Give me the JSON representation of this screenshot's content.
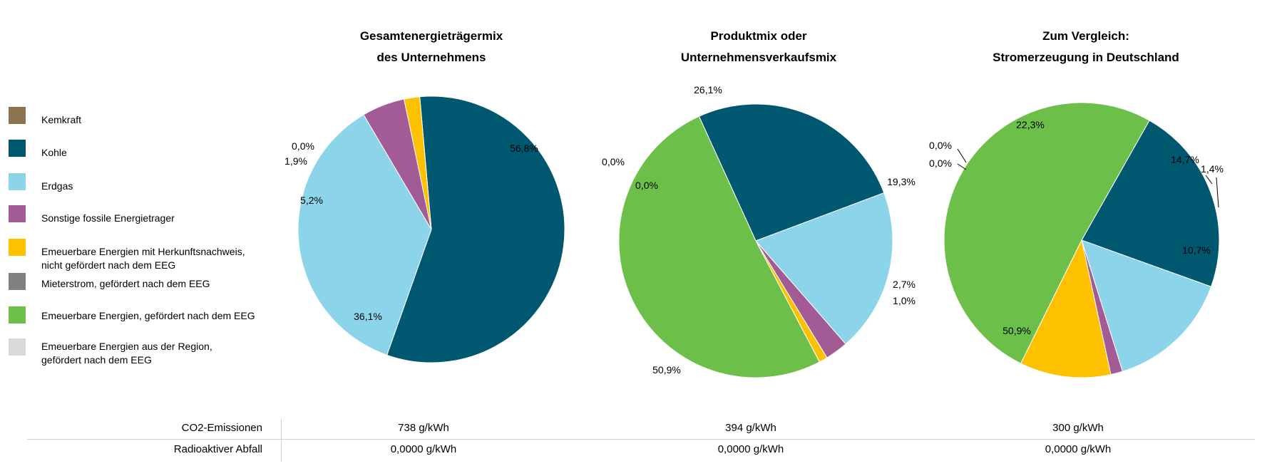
{
  "legend": [
    {
      "label": "Kemkraft",
      "color": "#8b7350"
    },
    {
      "label": "Kohle",
      "color": "#005870"
    },
    {
      "label": "Erdgas",
      "color": "#8cd4ea"
    },
    {
      "label": "Sonstige fossile Energietrager",
      "color": "#a35b95"
    },
    {
      "label": "Emeuerbare Energien mit Herkunftsnachweis,\nnicht gefördert nach dem EEG",
      "color": "#fdc100"
    },
    {
      "label": "Mieterstrom, gefördert nach dem EEG",
      "color": "#808080"
    },
    {
      "label": "Emeuerbare Energien, gefördert nach dem EEG",
      "color": "#6cc04a"
    },
    {
      "label": "Emeuerbare Energien aus der Region,\ngefördert nach dem EEG",
      "color": "#d9d9d9"
    }
  ],
  "chart_data": [
    {
      "type": "pie",
      "title": "Gesamtenergieträgermix\ndes Unternehmens",
      "labels": [
        "Kohle",
        "Erdgas",
        "Sonstige fossile Energietrager",
        "Emeuerbare Energien mit Herkunftsnachweis, nicht gefördert nach dem EEG",
        "Kemkraft"
      ],
      "values": [
        56.8,
        36.1,
        5.2,
        1.9,
        0.0
      ],
      "value_labels": [
        "56,8%",
        "36,1%",
        "5,2%",
        "1,9%",
        "0,0%"
      ],
      "colors": [
        "#005870",
        "#8cd4ea",
        "#a35b95",
        "#fdc100",
        "#8b7350"
      ]
    },
    {
      "type": "pie",
      "title": "Produktmix oder\nUnternehmensverkaufsmix",
      "labels": [
        "Kohle",
        "Erdgas",
        "Sonstige fossile Energietrager",
        "Emeuerbare Energien mit Herkunftsnachweis, nicht gefördert nach dem EEG",
        "Emeuerbare Energien, gefördert nach dem EEG",
        "Mieterstrom, gefördert nach dem EEG",
        "Kemkraft"
      ],
      "values": [
        26.1,
        19.3,
        2.7,
        1.0,
        50.9,
        0.0,
        0.0
      ],
      "value_labels": [
        "26,1%",
        "19,3%",
        "2,7%",
        "1,0%",
        "50,9%",
        "0,0%",
        "0,0%"
      ],
      "colors": [
        "#005870",
        "#8cd4ea",
        "#a35b95",
        "#fdc100",
        "#6cc04a",
        "#808080",
        "#8b7350"
      ]
    },
    {
      "type": "pie",
      "title": "Zum Vergleich:\nStromerzeugung in Deutschland",
      "labels": [
        "Kohle",
        "Erdgas",
        "Sonstige fossile Energietrager",
        "Emeuerbare Energien mit Herkunftsnachweis, nicht gefördert nach dem EEG",
        "Emeuerbare Energien, gefördert nach dem EEG",
        "Mieterstrom, gefördert nach dem EEG",
        "Kemkraft"
      ],
      "values": [
        22.3,
        14.7,
        1.4,
        10.7,
        50.9,
        0.0,
        0.0
      ],
      "value_labels": [
        "22,3%",
        "14,7%",
        "1,4%",
        "10,7%",
        "50,9%",
        "0,0%",
        "0,0%"
      ],
      "colors": [
        "#005870",
        "#8cd4ea",
        "#a35b95",
        "#fdc100",
        "#6cc04a",
        "#808080",
        "#8b7350"
      ]
    }
  ],
  "table": {
    "rows": [
      {
        "label": "CO2-Emissionen",
        "values": [
          "738 g/kWh",
          "394 g/kWh",
          "300 g/kWh"
        ]
      },
      {
        "label": "Radioaktiver Abfall",
        "values": [
          "0,0000 g/kWh",
          "0,0000 g/kWh",
          "0,0000 g/kWh"
        ]
      }
    ]
  }
}
